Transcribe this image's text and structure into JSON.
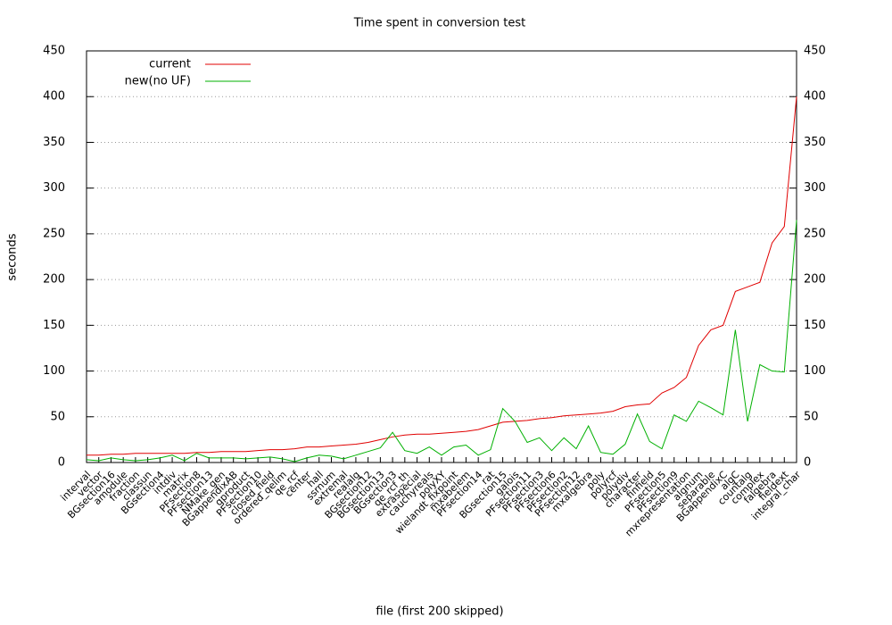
{
  "chart_data": {
    "type": "line",
    "title": "Time spent in conversion test",
    "xlabel": "file (first 200 skipped)",
    "ylabel": "seconds",
    "categories": [
      "interval",
      "vector",
      "BGsection16",
      "amodule",
      "fraction",
      "classun",
      "BGsection4",
      "intdiv",
      "matrix",
      "PFsection8",
      "PFsection13",
      "NMake_gen",
      "BGappendixAB",
      "qproduct",
      "PFsection10",
      "closed_field",
      "ordered_qelim",
      "qe_rcf",
      "center",
      "hall",
      "ssrnum",
      "extremal",
      "realalg",
      "BGsection12",
      "BGsection13",
      "BGsection3",
      "qe_rcf_th",
      "extraspecial",
      "cauchyreals",
      "polyXY",
      "wielandt_fixpoint",
      "mxabelem",
      "PFsection14",
      "rat",
      "BGsection15",
      "galois",
      "PFsection11",
      "PFsection3",
      "PFsection6",
      "PFsection2",
      "PFsection12",
      "mxalgebra",
      "poly",
      "polyrcf",
      "polydiv",
      "character",
      "finfield",
      "PFsection5",
      "PFsection9",
      "mxrepresentation",
      "algnum",
      "separable",
      "BGappendixC",
      "algC",
      "countalg",
      "complex",
      "falgebra",
      "fieldext",
      "integral_char"
    ],
    "series": [
      {
        "name": "current",
        "color": "#e00000",
        "values": [
          8,
          8,
          9,
          9,
          10,
          10,
          10,
          10,
          10,
          11,
          11,
          12,
          12,
          12,
          13,
          14,
          14,
          15,
          17,
          17,
          18,
          19,
          20,
          22,
          25,
          28,
          30,
          31,
          31,
          32,
          33,
          34,
          36,
          40,
          44,
          45,
          46,
          48,
          49,
          51,
          52,
          53,
          54,
          56,
          61,
          63,
          64,
          76,
          82,
          93,
          128,
          145,
          150,
          187,
          192,
          197,
          240,
          258,
          400
        ]
      },
      {
        "name": "new(no UF)",
        "color": "#00b000",
        "values": [
          3,
          2,
          5,
          3,
          2,
          3,
          5,
          8,
          2,
          10,
          5,
          5,
          5,
          4,
          5,
          6,
          4,
          1,
          5,
          8,
          7,
          4,
          8,
          12,
          16,
          33,
          13,
          10,
          17,
          8,
          17,
          19,
          8,
          14,
          59,
          45,
          22,
          27,
          13,
          27,
          15,
          40,
          11,
          9,
          20,
          53,
          23,
          15,
          52,
          45,
          67,
          60,
          52,
          145,
          45,
          107,
          100,
          99,
          265
        ]
      }
    ],
    "ylim": [
      0,
      450
    ],
    "yticks": [
      0,
      50,
      100,
      150,
      200,
      250,
      300,
      350,
      400,
      450
    ],
    "y2lim": [
      0,
      450
    ],
    "y2ticks": [
      0,
      50,
      100,
      150,
      200,
      250,
      300,
      350,
      400,
      450
    ],
    "grid": true,
    "legend": "top-left"
  }
}
